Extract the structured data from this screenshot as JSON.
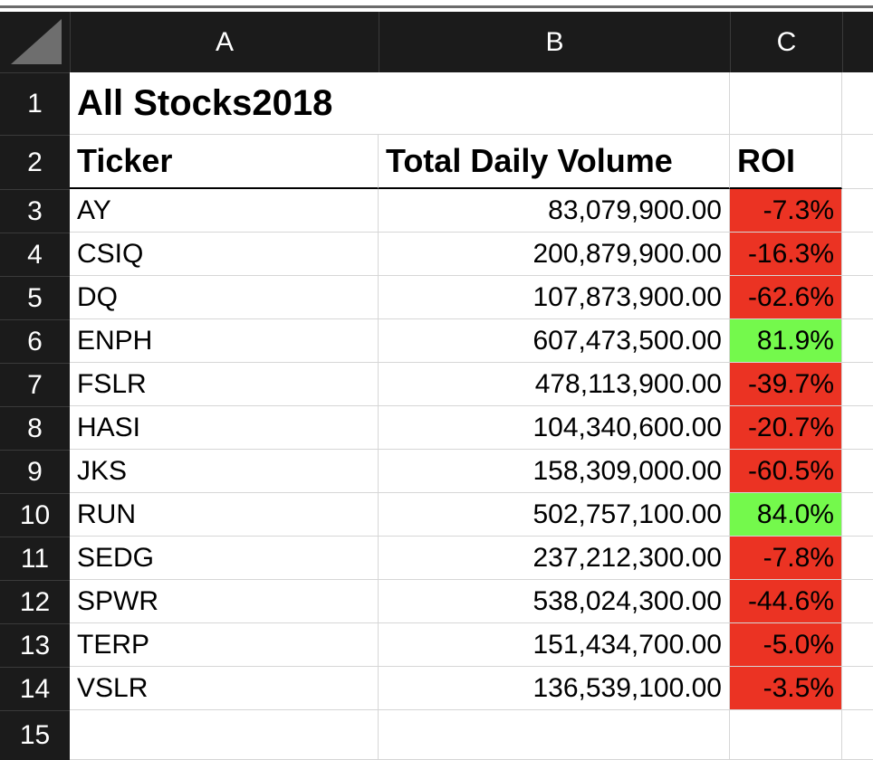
{
  "columns": [
    "A",
    "B",
    "C"
  ],
  "rows": [
    "1",
    "2",
    "3",
    "4",
    "5",
    "6",
    "7",
    "8",
    "9",
    "10",
    "11",
    "12",
    "13",
    "14",
    "15"
  ],
  "title": "All Stocks2018",
  "headers": {
    "ticker": "Ticker",
    "volume": "Total Daily Volume",
    "roi": "ROI"
  },
  "colors": {
    "negative": "#eb3323",
    "positive": "#74f94c",
    "header_bg": "#1b1b1b"
  },
  "stocks": [
    {
      "ticker": "AY",
      "volume": "83,079,900.00",
      "roi": "-7.3%",
      "sign": "neg"
    },
    {
      "ticker": "CSIQ",
      "volume": "200,879,900.00",
      "roi": "-16.3%",
      "sign": "neg"
    },
    {
      "ticker": "DQ",
      "volume": "107,873,900.00",
      "roi": "-62.6%",
      "sign": "neg"
    },
    {
      "ticker": "ENPH",
      "volume": "607,473,500.00",
      "roi": "81.9%",
      "sign": "pos"
    },
    {
      "ticker": "FSLR",
      "volume": "478,113,900.00",
      "roi": "-39.7%",
      "sign": "neg"
    },
    {
      "ticker": "HASI",
      "volume": "104,340,600.00",
      "roi": "-20.7%",
      "sign": "neg"
    },
    {
      "ticker": "JKS",
      "volume": "158,309,000.00",
      "roi": "-60.5%",
      "sign": "neg"
    },
    {
      "ticker": "RUN",
      "volume": "502,757,100.00",
      "roi": "84.0%",
      "sign": "pos"
    },
    {
      "ticker": "SEDG",
      "volume": "237,212,300.00",
      "roi": "-7.8%",
      "sign": "neg"
    },
    {
      "ticker": "SPWR",
      "volume": "538,024,300.00",
      "roi": "-44.6%",
      "sign": "neg"
    },
    {
      "ticker": "TERP",
      "volume": "151,434,700.00",
      "roi": "-5.0%",
      "sign": "neg"
    },
    {
      "ticker": "VSLR",
      "volume": "136,539,100.00",
      "roi": "-3.5%",
      "sign": "neg"
    }
  ]
}
